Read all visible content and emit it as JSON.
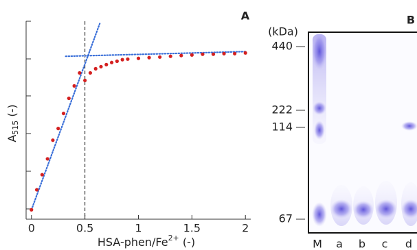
{
  "chart_data": {
    "type": "scatter",
    "panel": "A",
    "xlabel": [
      "HSA-phen/Fe",
      "2+",
      " (-)"
    ],
    "ylabel": [
      "A",
      "515",
      " (-)"
    ],
    "x": [
      0,
      0.05,
      0.1,
      0.15,
      0.2,
      0.25,
      0.3,
      0.35,
      0.4,
      0.45,
      0.5,
      0.55,
      0.6,
      0.65,
      0.7,
      0.75,
      0.8,
      0.85,
      0.9,
      1.0,
      1.1,
      1.2,
      1.3,
      1.4,
      1.5,
      1.6,
      1.7,
      1.8,
      1.9,
      2.0
    ],
    "values": [
      0,
      0.106,
      0.186,
      0.27,
      0.369,
      0.431,
      0.511,
      0.591,
      0.657,
      0.726,
      0.686,
      0.726,
      0.748,
      0.759,
      0.77,
      0.781,
      0.788,
      0.796,
      0.799,
      0.803,
      0.807,
      0.81,
      0.814,
      0.818,
      0.821,
      0.825,
      0.825,
      0.828,
      0.828,
      0.832
    ],
    "color": "#d42020",
    "fit_lines": [
      {
        "x": [
          0,
          0.64
        ],
        "y": [
          0,
          0.99
        ]
      },
      {
        "x": [
          0.32,
          2.0
        ],
        "y": [
          0.814,
          0.839
        ]
      }
    ],
    "fit_color": "#3a6fd8",
    "vline": 0.5,
    "xlim": [
      -0.05,
      2.05
    ],
    "ylim": [
      -0.05,
      1
    ],
    "xticks": [
      0,
      0.5,
      1,
      1.5,
      2
    ]
  },
  "gel": {
    "panel": "B",
    "unit": "(kDa)",
    "markers": [
      "440",
      "222",
      "114",
      "67"
    ],
    "lanes": [
      "M",
      "a",
      "b",
      "c",
      "d"
    ]
  }
}
